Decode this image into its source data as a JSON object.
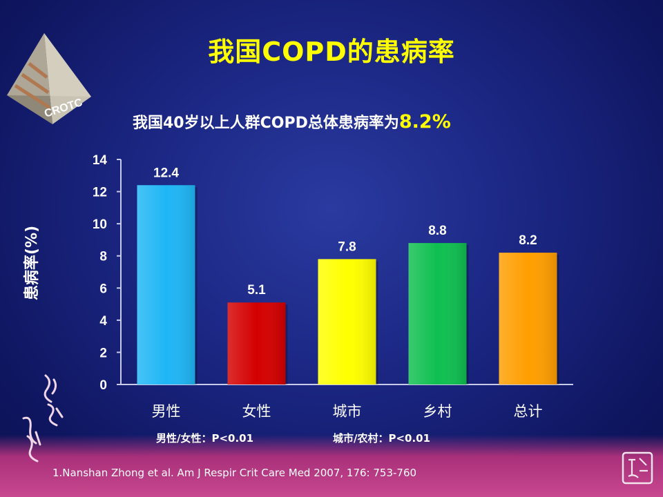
{
  "slide": {
    "title": "我国COPD的患病率",
    "subtitle_main": "我国40岁以上人群COPD总体患病率为",
    "subtitle_highlight": "8.2%",
    "note_gender": "男性/女性：P<0.01",
    "note_region": "城市/农村：P<0.01",
    "reference": "1.Nanshan Zhong et al.  Am J Respir Crit Care Med  2007, 176: 753-760",
    "logo_text": "CROTC"
  },
  "chart_data": {
    "type": "bar",
    "ylabel": "患病率(%)",
    "xlabel": "",
    "ylim": [
      0,
      14
    ],
    "yticks": [
      0,
      2,
      4,
      6,
      8,
      10,
      12,
      14
    ],
    "categories": [
      "男性",
      "女性",
      "城市",
      "乡村",
      "总计"
    ],
    "values": [
      12.4,
      5.1,
      7.8,
      8.8,
      8.2
    ],
    "value_labels": [
      "12.4",
      "5.1",
      "7.8",
      "8.8",
      "8.2"
    ],
    "colors": [
      "#1fb6f5",
      "#d40000",
      "#ffff00",
      "#0fbf50",
      "#ff9e00"
    ],
    "grid": false,
    "legend": "none"
  }
}
